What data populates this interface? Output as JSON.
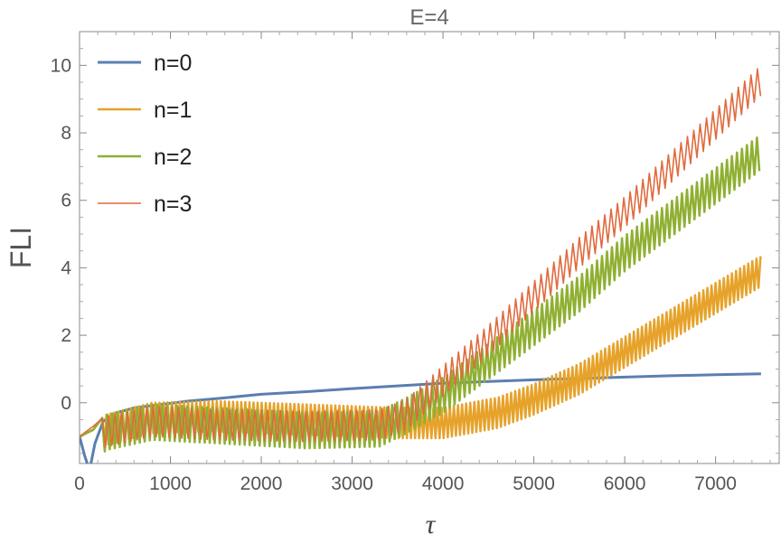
{
  "chart_data": {
    "type": "line",
    "title": "E=4",
    "xlabel": "τ",
    "ylabel": "FLI",
    "xlim": [
      0,
      7700
    ],
    "ylim": [
      -1.8,
      11
    ],
    "xticks": [
      0,
      1000,
      2000,
      3000,
      4000,
      5000,
      6000,
      7000
    ],
    "yticks": [
      0,
      2,
      4,
      6,
      8,
      10
    ],
    "grid": false,
    "legend_position": "top-left",
    "series": [
      {
        "name": "n=0",
        "color": "#5a7fb0",
        "width": 3,
        "points": [
          [
            0,
            -1.0
          ],
          [
            60,
            -1.6
          ],
          [
            110,
            -2.0
          ],
          [
            170,
            -1.2
          ],
          [
            260,
            -0.55
          ],
          [
            400,
            -0.3
          ],
          [
            600,
            -0.15
          ],
          [
            900,
            -0.05
          ],
          [
            1200,
            0.05
          ],
          [
            1500,
            0.12
          ],
          [
            2000,
            0.25
          ],
          [
            2500,
            0.33
          ],
          [
            3000,
            0.42
          ],
          [
            3500,
            0.5
          ],
          [
            4000,
            0.58
          ],
          [
            4500,
            0.63
          ],
          [
            5000,
            0.68
          ],
          [
            5500,
            0.72
          ],
          [
            6000,
            0.76
          ],
          [
            6500,
            0.8
          ],
          [
            7000,
            0.83
          ],
          [
            7500,
            0.86
          ]
        ]
      },
      {
        "name": "n=1",
        "color": "#e6a22a",
        "width": 2.5,
        "osc": {
          "start": 250,
          "step": 45,
          "lowAmp": 0.75,
          "highAmp": 0.15
        },
        "points": [
          [
            0,
            -1.0
          ],
          [
            150,
            -0.8
          ],
          [
            300,
            -0.5
          ],
          [
            800,
            -0.15
          ],
          [
            1500,
            -0.1
          ],
          [
            2500,
            -0.2
          ],
          [
            3500,
            -0.3
          ],
          [
            4000,
            -0.3
          ],
          [
            4600,
            0.0
          ],
          [
            5000,
            0.4
          ],
          [
            5500,
            1.0
          ],
          [
            6000,
            1.8
          ],
          [
            6500,
            2.6
          ],
          [
            7000,
            3.4
          ],
          [
            7500,
            4.2
          ]
        ]
      },
      {
        "name": "n=2",
        "color": "#8fb032",
        "width": 2.5,
        "osc": {
          "start": 250,
          "step": 55,
          "lowAmp": 0.9,
          "highAmp": 0.15
        },
        "points": [
          [
            0,
            -1.0
          ],
          [
            150,
            -0.8
          ],
          [
            300,
            -0.5
          ],
          [
            800,
            -0.2
          ],
          [
            1500,
            -0.3
          ],
          [
            2500,
            -0.45
          ],
          [
            3300,
            -0.4
          ],
          [
            3600,
            0.0
          ],
          [
            4000,
            0.6
          ],
          [
            4500,
            1.6
          ],
          [
            5000,
            2.6
          ],
          [
            5500,
            3.6
          ],
          [
            6000,
            4.8
          ],
          [
            6500,
            5.8
          ],
          [
            7000,
            6.8
          ],
          [
            7500,
            7.8
          ]
        ]
      },
      {
        "name": "n=3",
        "color": "#e06a3e",
        "width": 1.6,
        "osc": {
          "start": 250,
          "step": 70,
          "lowAmp": 0.8,
          "highAmp": 0.1
        },
        "points": [
          [
            0,
            -1.0
          ],
          [
            150,
            -0.7
          ],
          [
            300,
            -0.5
          ],
          [
            800,
            -0.2
          ],
          [
            1500,
            -0.3
          ],
          [
            2500,
            -0.35
          ],
          [
            3300,
            -0.3
          ],
          [
            3600,
            0.0
          ],
          [
            4000,
            1.0
          ],
          [
            4500,
            2.2
          ],
          [
            5000,
            3.5
          ],
          [
            5500,
            4.8
          ],
          [
            6000,
            6.0
          ],
          [
            6500,
            7.3
          ],
          [
            7000,
            8.6
          ],
          [
            7500,
            9.9
          ]
        ]
      }
    ]
  }
}
